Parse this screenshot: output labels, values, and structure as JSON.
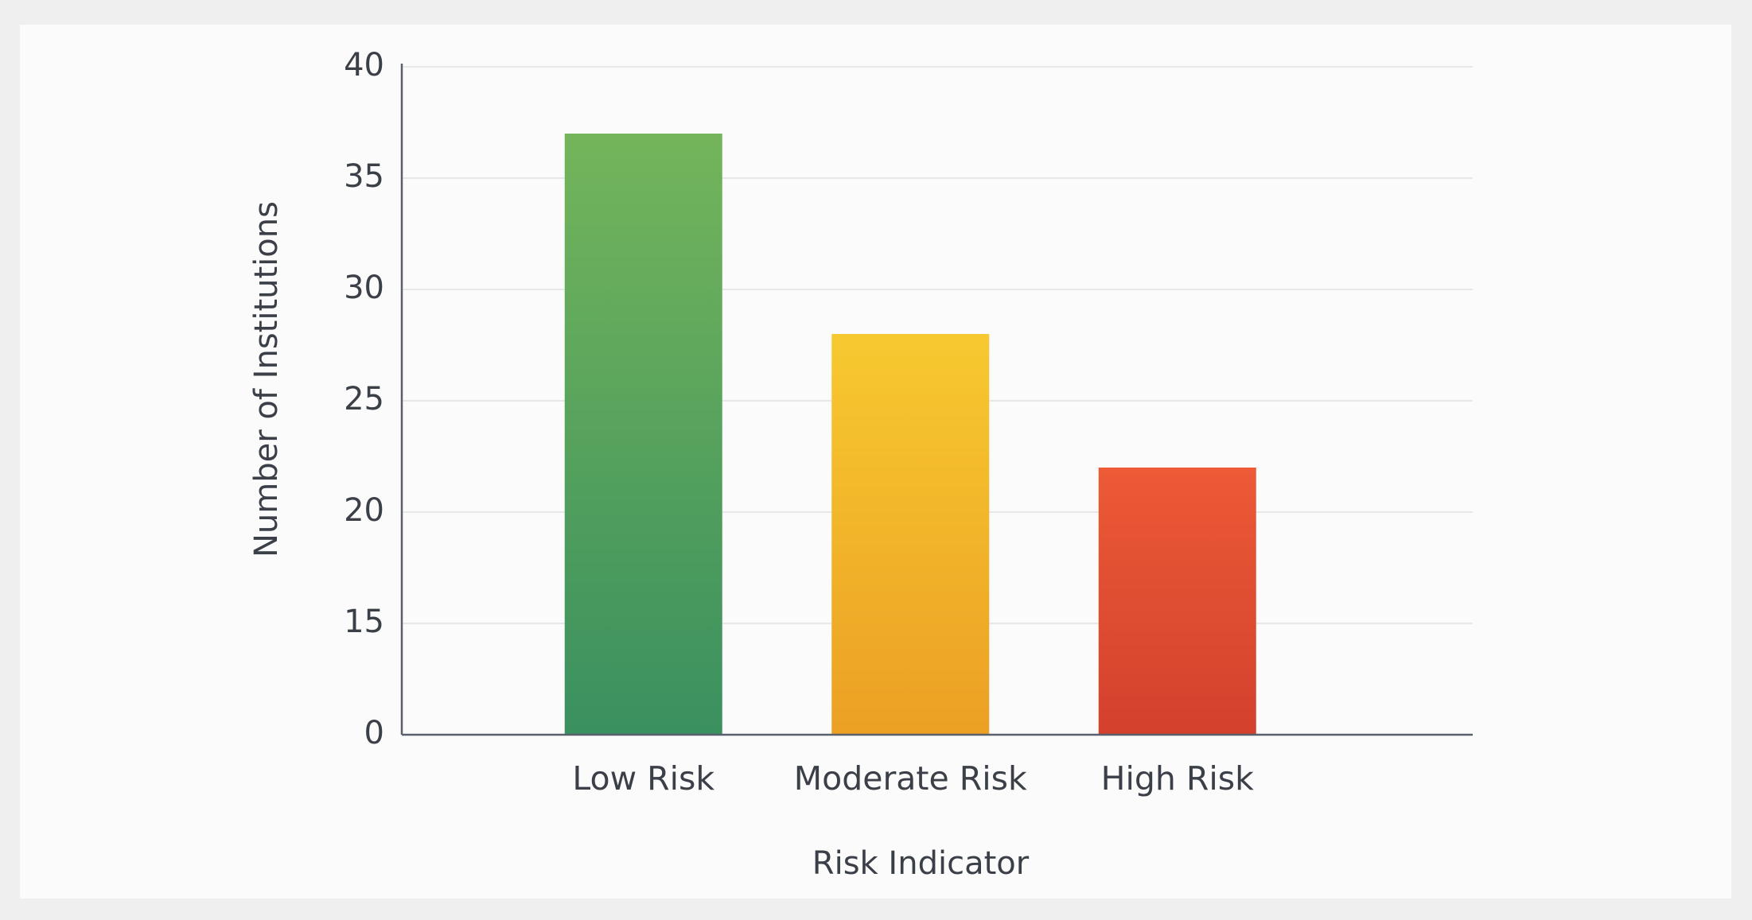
{
  "chart_data": {
    "type": "bar",
    "x_label": "Risk Indicator",
    "y_label": "Number of Institutions",
    "categories": [
      "Low Risk",
      "Moderate Risk",
      "High Risk"
    ],
    "values": [
      37,
      28,
      22
    ],
    "colors": [
      "#74b55b",
      "#f7c930",
      "#ec5a36"
    ],
    "gradient_end_colors": [
      "#3a905f",
      "#eca024",
      "#d3412e"
    ],
    "ylim": [
      0,
      40
    ],
    "yticks": [
      0,
      15,
      20,
      25,
      30,
      35,
      40
    ],
    "axis_break": true,
    "grid": true
  }
}
